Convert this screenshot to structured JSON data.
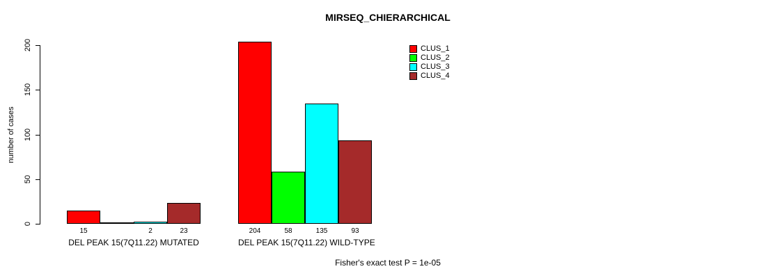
{
  "window": {
    "title": "MIRSEQ_CHIERARCHICAL"
  },
  "chart_data": {
    "type": "bar",
    "title": "MIRSEQ_CHIERARCHICAL",
    "xlabel": "",
    "ylabel": "number of cases",
    "ylim": [
      0,
      200
    ],
    "yticks": [
      0,
      50,
      100,
      150,
      200
    ],
    "grid": false,
    "background_color": "#FFFFFF",
    "axis_color": "#000000",
    "categories": [
      "DEL PEAK 15(7Q11.22) MUTATED",
      "DEL PEAK 15(7Q11.22) WILD-TYPE"
    ],
    "series": [
      {
        "name": "CLUS_1",
        "color": "#FF0000",
        "values": [
          15,
          204
        ]
      },
      {
        "name": "CLUS_2",
        "color": "#00FF00",
        "values": [
          0,
          58
        ]
      },
      {
        "name": "CLUS_3",
        "color": "#00FFFF",
        "values": [
          2,
          135
        ]
      },
      {
        "name": "CLUS_4",
        "color": "#A52A2A",
        "values": [
          23,
          93
        ]
      }
    ],
    "bar_value_labels": [
      [
        "15",
        "",
        "2",
        "23"
      ],
      [
        "204",
        "58",
        "135",
        "93"
      ]
    ],
    "legend": {
      "position": "top-right",
      "entries": [
        {
          "label": "CLUS_1",
          "color": "#FF0000"
        },
        {
          "label": "CLUS_2",
          "color": "#00FF00"
        },
        {
          "label": "CLUS_3",
          "color": "#00FFFF"
        },
        {
          "label": "CLUS_4",
          "color": "#A52A2A"
        }
      ]
    },
    "annotation": "Fisher's exact test P = 1e-05"
  }
}
